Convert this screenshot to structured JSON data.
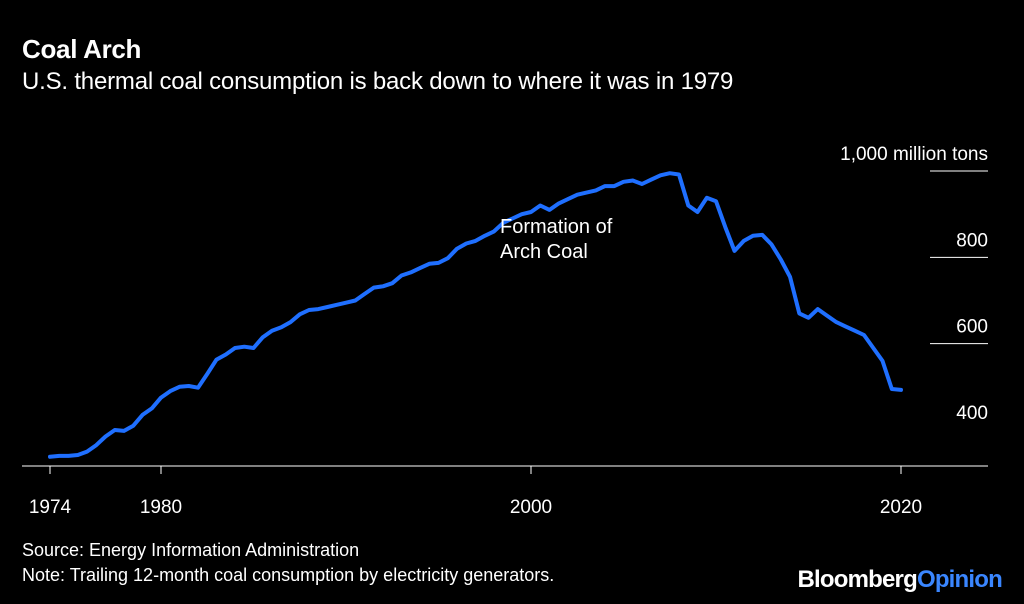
{
  "header": {
    "title": "Coal Arch",
    "subtitle": "U.S. thermal coal consumption is back down to where it was in 1979"
  },
  "footer": {
    "source": "Source: Energy Information Administration",
    "note": "Note: Trailing 12-month coal consumption by electricity generators.",
    "brand_main": "Bloomberg",
    "brand_accent": "Opinion"
  },
  "chart_data": {
    "type": "line",
    "title": "Coal Arch",
    "ylabel": "million tons",
    "xlim": [
      1974,
      2024.5
    ],
    "ylim": [
      310,
      1050
    ],
    "x_ticks": [
      {
        "value": 1974,
        "label": "1974"
      },
      {
        "value": 1980,
        "label": "1980"
      },
      {
        "value": 2000,
        "label": "2000"
      },
      {
        "value": 2020,
        "label": "2020"
      }
    ],
    "y_ticks": [
      {
        "value": 1000,
        "label": "1,000 million tons"
      },
      {
        "value": 800,
        "label": "800"
      },
      {
        "value": 600,
        "label": "600"
      },
      {
        "value": 400,
        "label": "400"
      }
    ],
    "annotation": {
      "x": 1998.3,
      "y": 820,
      "lines": [
        "Formation of",
        "Arch Coal"
      ]
    },
    "series": [
      {
        "name": "Trailing 12-month coal consumption by electricity generators",
        "color": "#1f6fff",
        "x": [
          1974.0,
          1974.5,
          1975.0,
          1975.5,
          1976.0,
          1976.5,
          1977.0,
          1977.5,
          1978.0,
          1978.5,
          1979.0,
          1979.5,
          1980.0,
          1980.5,
          1981.0,
          1981.5,
          1982.0,
          1982.5,
          1983.0,
          1983.5,
          1984.0,
          1984.5,
          1985.0,
          1985.5,
          1986.0,
          1986.5,
          1987.0,
          1987.5,
          1988.0,
          1988.5,
          1989.0,
          1989.5,
          1990.0,
          1990.5,
          1991.0,
          1991.5,
          1992.0,
          1992.5,
          1993.0,
          1993.5,
          1994.0,
          1994.5,
          1995.0,
          1995.5,
          1996.0,
          1996.5,
          1997.0,
          1997.5,
          1998.0,
          1998.5,
          1999.0,
          1999.5,
          2000.0,
          2000.5,
          2001.0,
          2001.5,
          2002.0,
          2002.5,
          2003.0,
          2003.5,
          2004.0,
          2004.5,
          2005.0,
          2005.5,
          2006.0,
          2006.5,
          2007.0,
          2007.5,
          2008.0,
          2008.5,
          2009.0,
          2009.5,
          2010.0,
          2010.5,
          2011.0,
          2011.5,
          2012.0,
          2012.5,
          2013.0,
          2013.5,
          2014.0,
          2014.5,
          2015.0,
          2015.5,
          2016.0,
          2016.5,
          2017.0,
          2017.5,
          2018.0,
          2018.5,
          2019.0,
          2019.5,
          2020.0
        ],
        "values": [
          338,
          340,
          340,
          342,
          350,
          365,
          385,
          400,
          398,
          410,
          435,
          450,
          475,
          490,
          500,
          502,
          498,
          530,
          563,
          575,
          590,
          593,
          590,
          615,
          630,
          638,
          650,
          668,
          678,
          680,
          685,
          690,
          695,
          700,
          715,
          730,
          733,
          740,
          758,
          765,
          775,
          785,
          787,
          798,
          820,
          832,
          838,
          850,
          860,
          880,
          890,
          900,
          905,
          920,
          910,
          925,
          935,
          945,
          950,
          955,
          965,
          965,
          975,
          978,
          970,
          980,
          990,
          995,
          992,
          920,
          905,
          938,
          930,
          870,
          815,
          838,
          850,
          852,
          830,
          795,
          755,
          670,
          660,
          680,
          665,
          650,
          640,
          630,
          620,
          590,
          560,
          495,
          493
        ]
      }
    ]
  }
}
